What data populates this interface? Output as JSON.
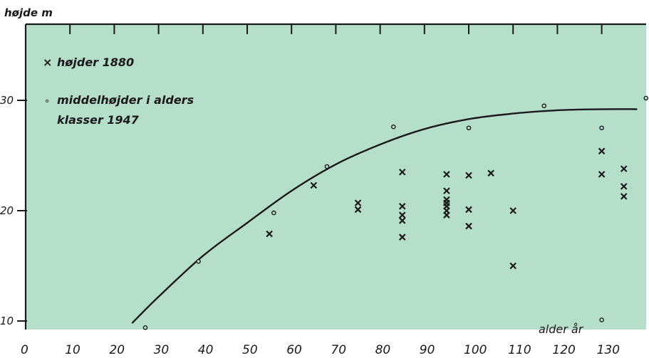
{
  "chart_data": {
    "type": "scatter",
    "ylabel": "højde m",
    "xlabel": "alder år",
    "xlim": [
      0,
      140
    ],
    "ylim": [
      9,
      36
    ],
    "x_ticks": [
      0,
      10,
      20,
      30,
      40,
      50,
      60,
      70,
      80,
      90,
      100,
      110,
      120,
      130
    ],
    "y_ticks": [
      10,
      20,
      30
    ],
    "legend": {
      "placement": "top-left",
      "entries": [
        {
          "symbol": "×",
          "label": "højder 1880"
        },
        {
          "symbol": "∘",
          "label": "middelhøjder i alders",
          "label2": "klasser 1947"
        }
      ]
    },
    "colors": {
      "background": "#b6dfcb",
      "ink": "#1a1a1a"
    },
    "series": [
      {
        "name": "højder 1880",
        "marker": "x",
        "points": [
          [
            55,
            17.9
          ],
          [
            65,
            22.3
          ],
          [
            75,
            20.7
          ],
          [
            75,
            20.1
          ],
          [
            85,
            23.5
          ],
          [
            85,
            20.4
          ],
          [
            85,
            19.6
          ],
          [
            85,
            19.1
          ],
          [
            85,
            17.6
          ],
          [
            95,
            23.3
          ],
          [
            95,
            21.8
          ],
          [
            95,
            21.0
          ],
          [
            95,
            20.7
          ],
          [
            95,
            20.4
          ],
          [
            95,
            20.0
          ],
          [
            95,
            19.6
          ],
          [
            100,
            23.2
          ],
          [
            100,
            20.1
          ],
          [
            100,
            18.6
          ],
          [
            105,
            23.4
          ],
          [
            110,
            20.0
          ],
          [
            110,
            15.0
          ],
          [
            130,
            25.4
          ],
          [
            130,
            23.3
          ],
          [
            135,
            23.8
          ],
          [
            135,
            22.2
          ],
          [
            135,
            21.3
          ]
        ]
      },
      {
        "name": "middelhøjder i alders klasser 1947",
        "marker": "o",
        "points": [
          [
            27,
            9.4
          ],
          [
            39,
            15.4
          ],
          [
            56,
            19.8
          ],
          [
            68,
            24.0
          ],
          [
            83,
            27.6
          ],
          [
            100,
            27.5
          ],
          [
            117,
            29.5
          ],
          [
            130,
            27.5
          ],
          [
            130,
            10.1
          ],
          [
            140,
            30.2
          ]
        ]
      },
      {
        "name": "",
        "marker": "none",
        "line": true,
        "points": [
          [
            24,
            9.8
          ],
          [
            30,
            12.2
          ],
          [
            40,
            15.9
          ],
          [
            50,
            18.9
          ],
          [
            60,
            21.8
          ],
          [
            70,
            24.2
          ],
          [
            80,
            26.0
          ],
          [
            90,
            27.4
          ],
          [
            100,
            28.3
          ],
          [
            110,
            28.8
          ],
          [
            120,
            29.1
          ],
          [
            130,
            29.2
          ],
          [
            138,
            29.2
          ]
        ]
      }
    ]
  }
}
